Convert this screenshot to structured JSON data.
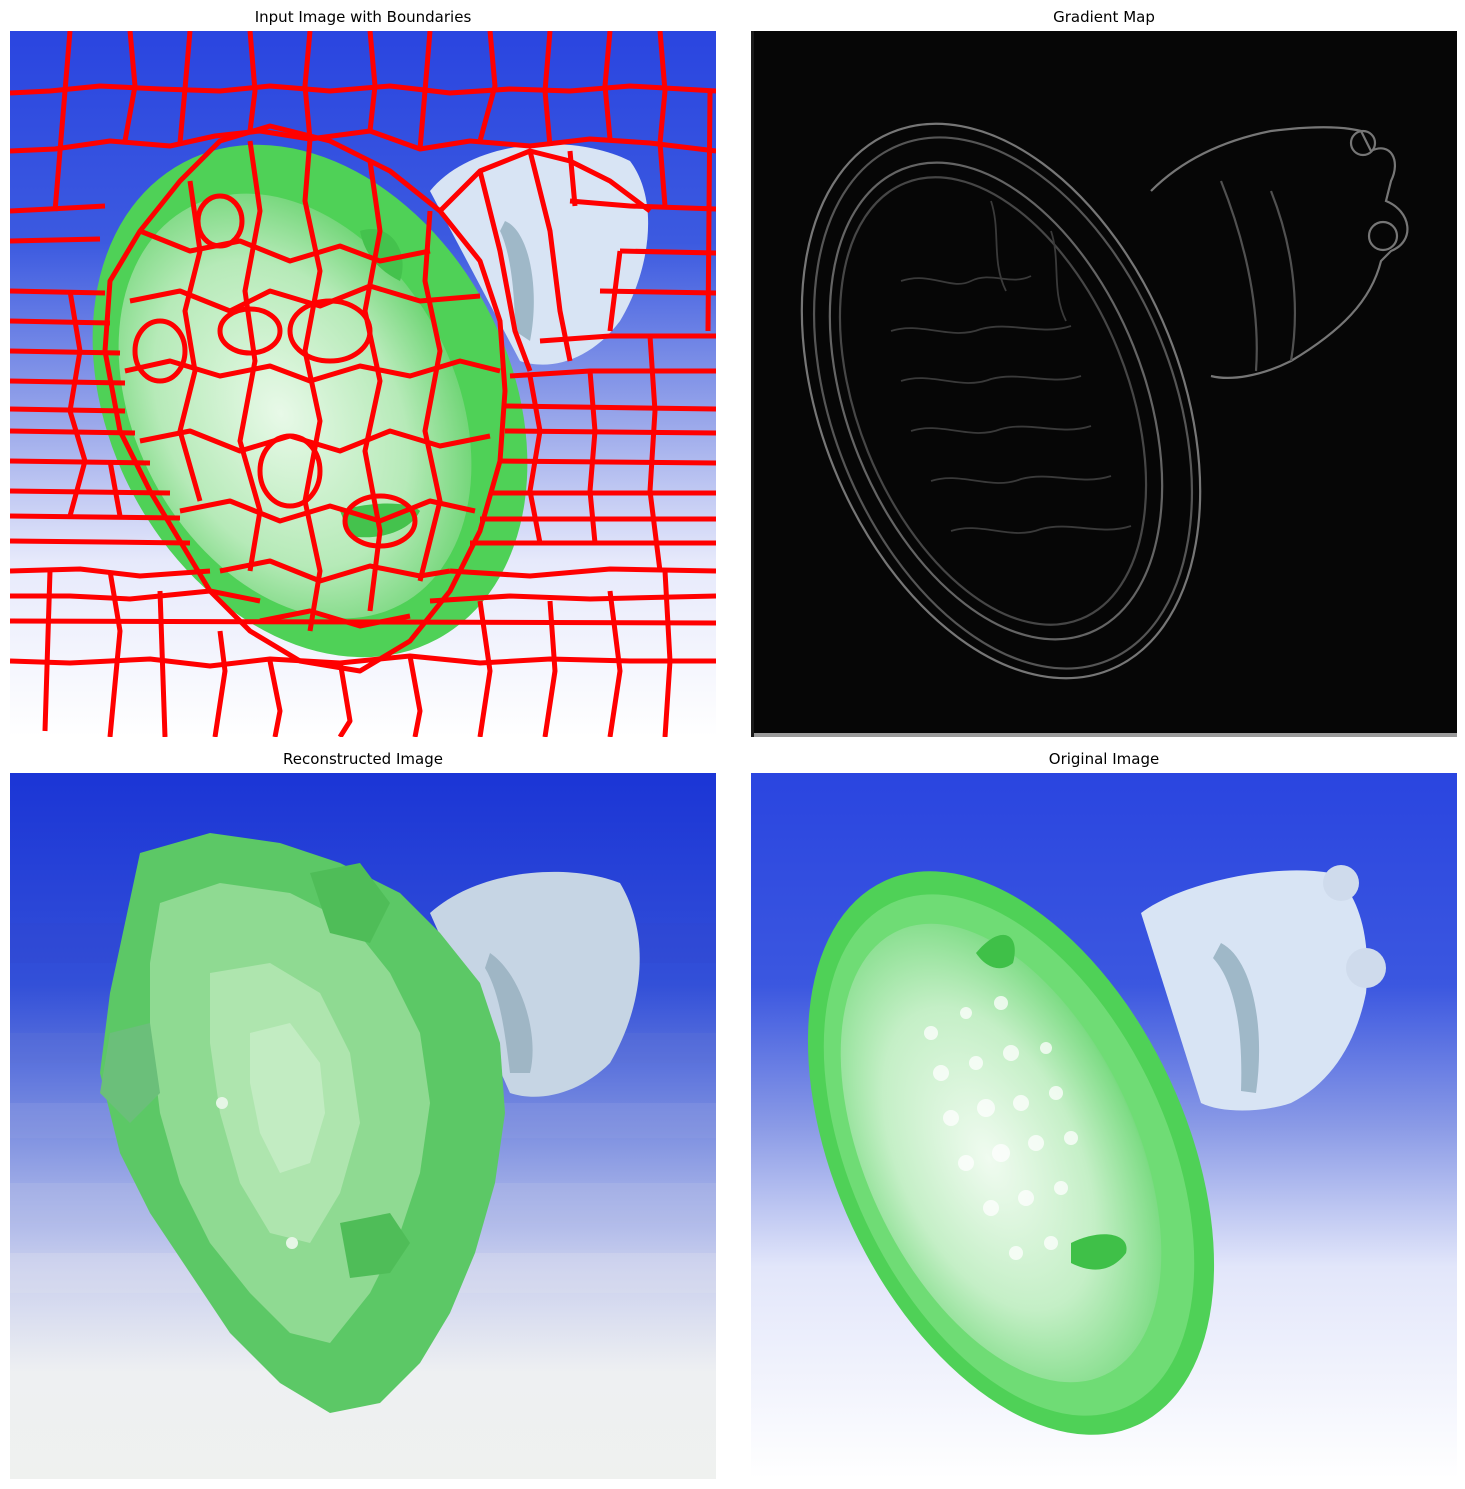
{
  "panels": {
    "boundaries": {
      "title": "Input Image with Boundaries"
    },
    "gradient": {
      "title": "Gradient Map"
    },
    "reconstructed": {
      "title": "Reconstructed Image"
    },
    "original": {
      "title": "Original Image"
    }
  },
  "colors": {
    "sky_top": "#2a45e0",
    "sky_mid": "#7f92e8",
    "sky_bottom": "#ffffff",
    "bulb_green": "#4fd157",
    "bulb_light": "#c9f2cb",
    "base_pale": "#d6e2f2",
    "boundary_red": "#ff0000",
    "gradient_bg": "#060606",
    "gradient_edge": "#8a8a8a"
  },
  "icons": {
    "boundaries": "led-bulb-superpixel-boundaries",
    "gradient": "led-bulb-edge-map",
    "reconstructed": "led-bulb-reconstruction",
    "original": "led-bulb-photo"
  }
}
